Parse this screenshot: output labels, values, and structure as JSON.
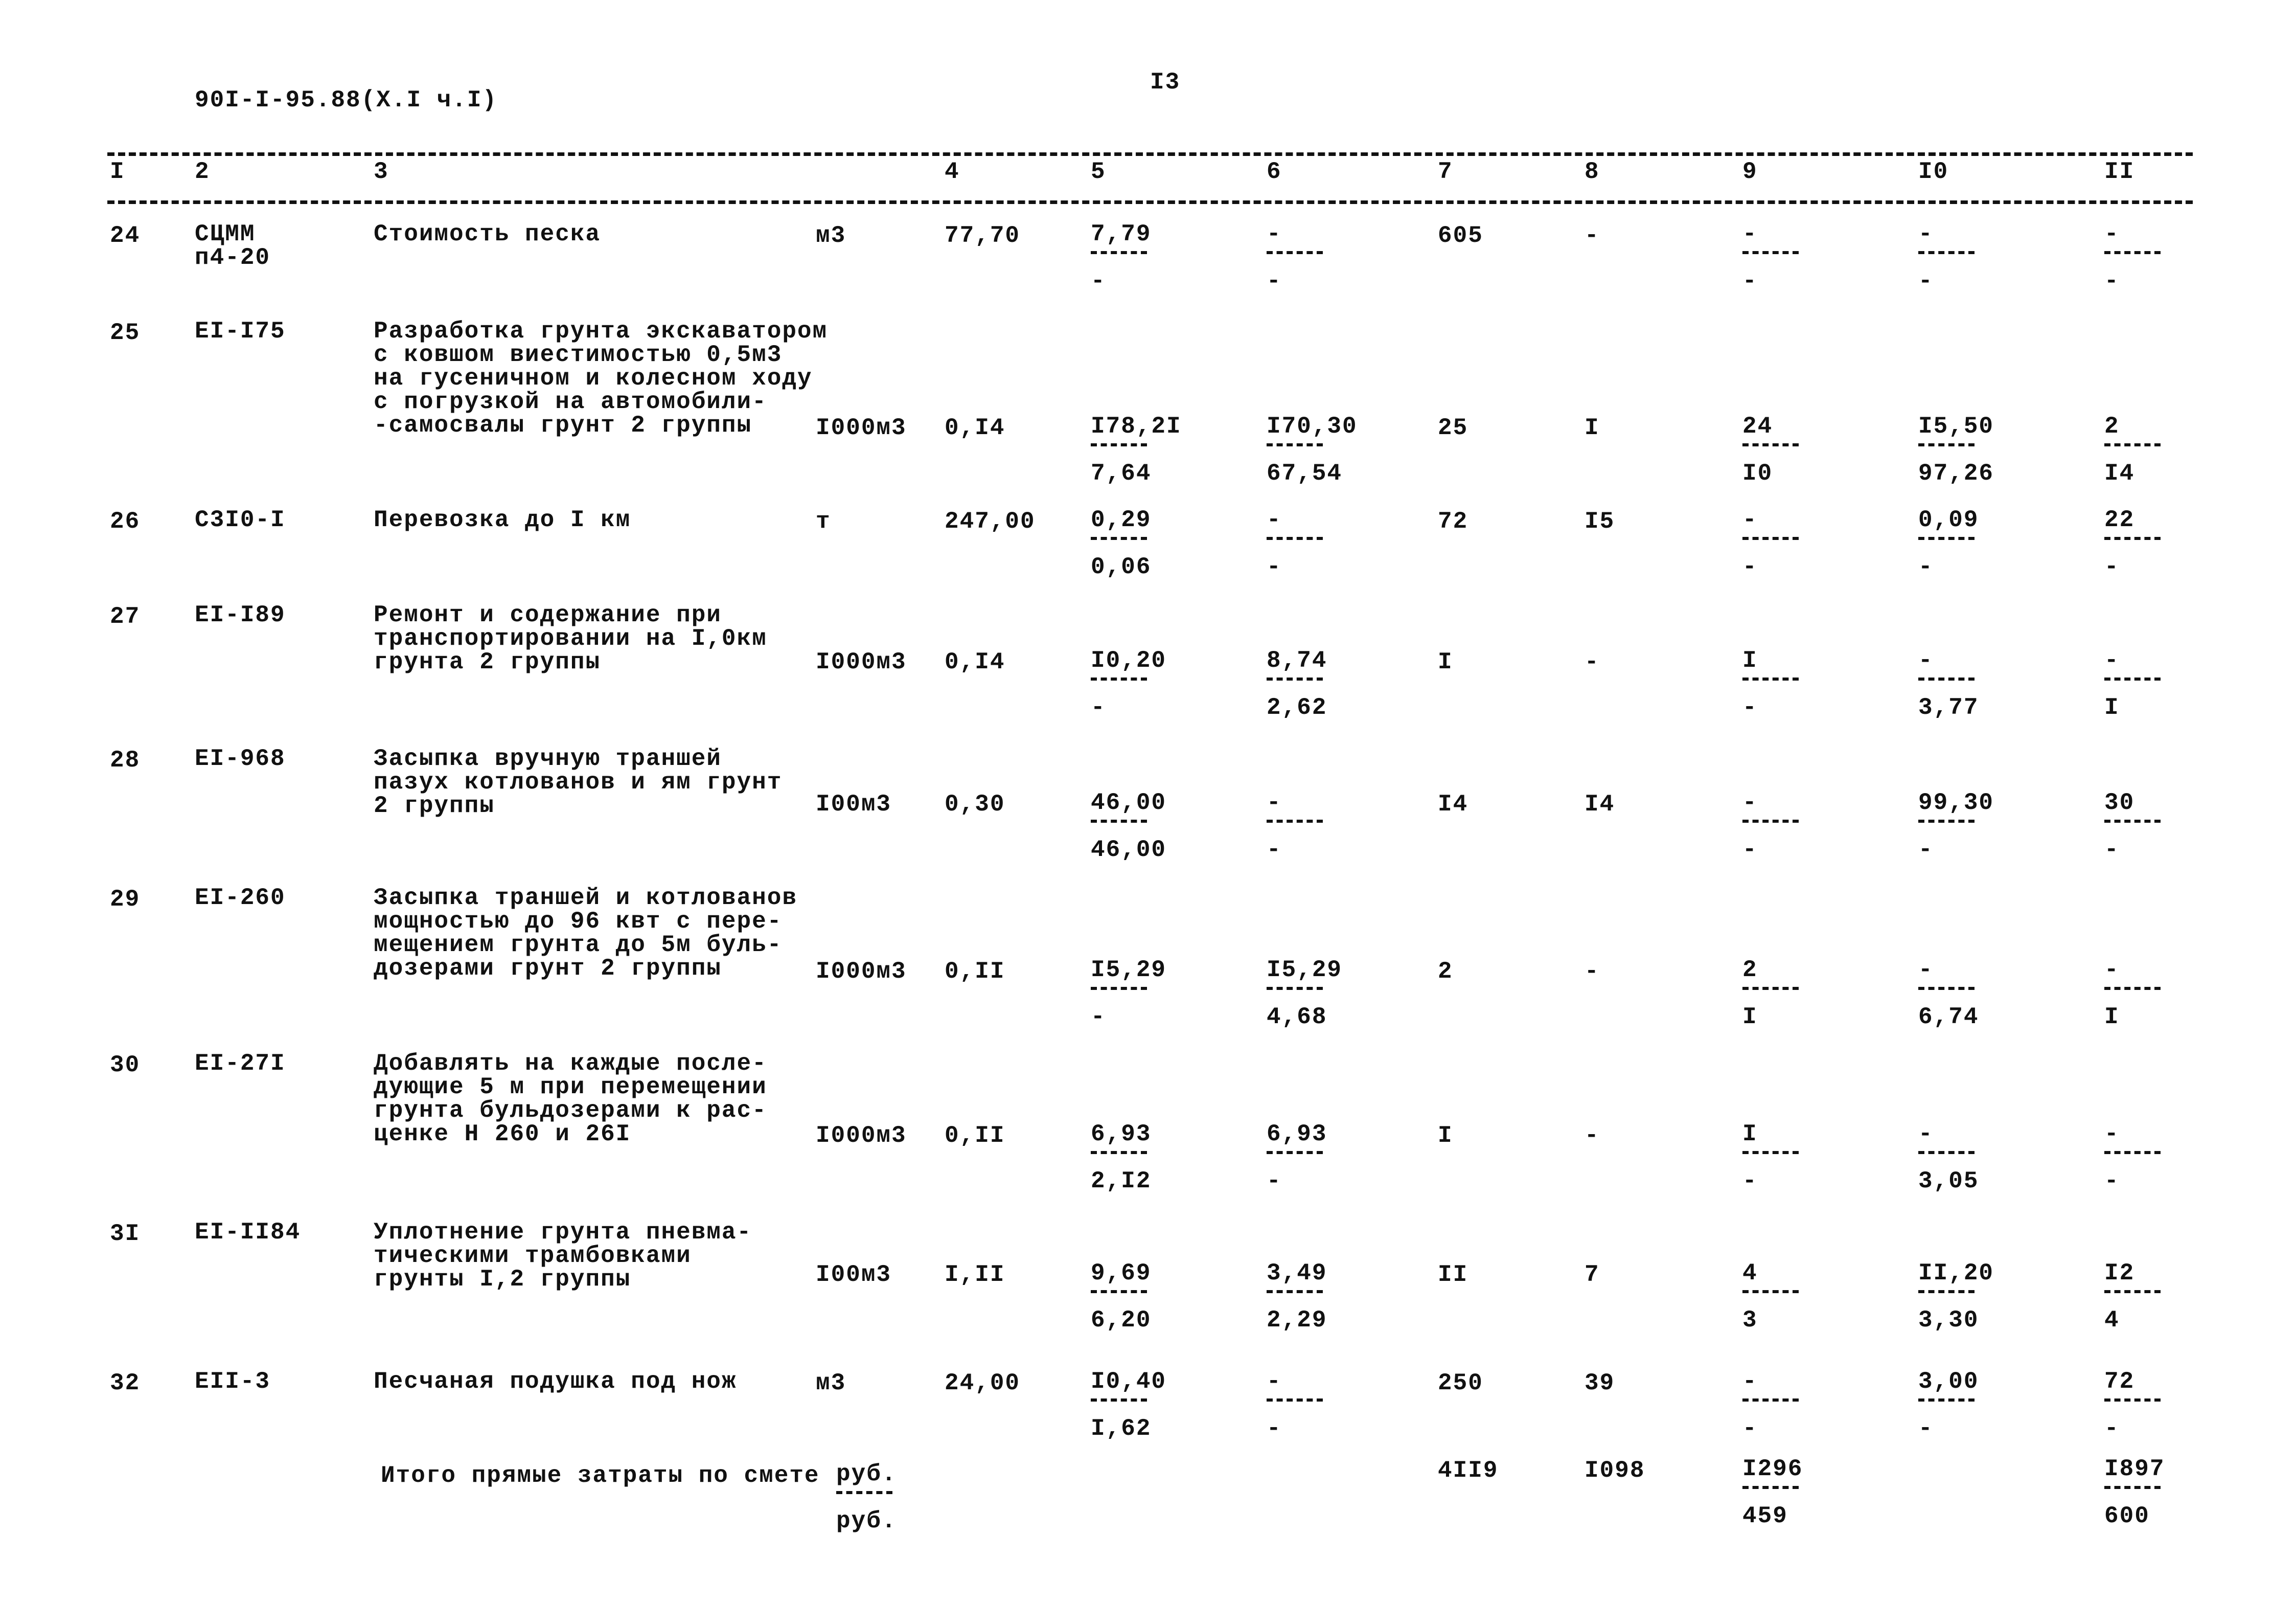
{
  "header": {
    "doc_code": "90I-I-95.88(X.I ч.I)",
    "page_number": "I3"
  },
  "columns": [
    "I",
    "2",
    "3",
    "4",
    "5",
    "6",
    "7",
    "8",
    "9",
    "I0",
    "II"
  ],
  "rows": [
    {
      "n": "24",
      "code": "СЦММ\nп4-20",
      "desc": "Стоимость песка",
      "unit": "м3",
      "qty": "77,70",
      "c5": [
        "7,79",
        "-"
      ],
      "c6": [
        "-",
        "-"
      ],
      "c7": "605",
      "c8": "-",
      "c9": [
        "-",
        "-"
      ],
      "c10": [
        "-",
        "-"
      ],
      "c11": [
        "-",
        "-"
      ]
    },
    {
      "n": "25",
      "code": "EI-I75",
      "desc": "Разработка грунта экскаватором\nс ковшом виестимостью 0,5м3\nна гусеничном и колесном ходу\nс погрузкой на автомобили-\n-самосвалы грунт 2 группы",
      "unit": "I000м3",
      "qty": "0,I4",
      "c5": [
        "I78,2I",
        "7,64"
      ],
      "c6": [
        "I70,30",
        "67,54"
      ],
      "c7": "25",
      "c8": "I",
      "c9": [
        "24",
        "I0"
      ],
      "c10": [
        "I5,50",
        "97,26"
      ],
      "c11": [
        "2",
        "I4"
      ]
    },
    {
      "n": "26",
      "code": "С3I0-I",
      "desc": "Перевозка до I км",
      "unit": "т",
      "qty": "247,00",
      "c5": [
        "0,29",
        "0,06"
      ],
      "c6": [
        "-",
        "-"
      ],
      "c7": "72",
      "c8": "I5",
      "c9": [
        "-",
        "-"
      ],
      "c10": [
        "0,09",
        "-"
      ],
      "c11": [
        "22",
        "-"
      ]
    },
    {
      "n": "27",
      "code": "EI-I89",
      "desc": "Ремонт и содержание при\nтранспортировании на I,0км\nгрунта 2 группы",
      "unit": "I000м3",
      "qty": "0,I4",
      "c5": [
        "I0,20",
        "-"
      ],
      "c6": [
        "8,74",
        "2,62"
      ],
      "c7": "I",
      "c8": "-",
      "c9": [
        "I",
        "-"
      ],
      "c10": [
        "-",
        "3,77"
      ],
      "c11": [
        "-",
        "I"
      ]
    },
    {
      "n": "28",
      "code": "EI-968",
      "desc": "Засыпка вручную траншей\nпазух котлованов и ям грунт\n2 группы",
      "unit": "I00м3",
      "qty": "0,30",
      "c5": [
        "46,00",
        "46,00"
      ],
      "c6": [
        "-",
        "-"
      ],
      "c7": "I4",
      "c8": "I4",
      "c9": [
        "-",
        "-"
      ],
      "c10": [
        "99,30",
        "-"
      ],
      "c11": [
        "30",
        "-"
      ]
    },
    {
      "n": "29",
      "code": "EI-260",
      "desc": "Засыпка траншей и котлованов\nмощностью до 96 квт с пере-\nмещением грунта до 5м буль-\nдозерами грунт 2 группы",
      "unit": "I000м3",
      "qty": "0,II",
      "c5": [
        "I5,29",
        "-"
      ],
      "c6": [
        "I5,29",
        "4,68"
      ],
      "c7": "2",
      "c8": "-",
      "c9": [
        "2",
        "I"
      ],
      "c10": [
        "-",
        "6,74"
      ],
      "c11": [
        "-",
        "I"
      ]
    },
    {
      "n": "30",
      "code": "EI-27I",
      "desc": "Добавлять на каждые после-\nдующие 5 м при перемещении\nгрунта бульдозерами к рас-\nценке Н 260 и 26I",
      "unit": "I000м3",
      "qty": "0,II",
      "c5": [
        "6,93",
        "2,I2"
      ],
      "c6": [
        "6,93",
        "-"
      ],
      "c7": "I",
      "c8": "-",
      "c9": [
        "I",
        "-"
      ],
      "c10": [
        "-",
        "3,05"
      ],
      "c11": [
        "-",
        "-"
      ]
    },
    {
      "n": "3I",
      "code": "EI-II84",
      "desc": "Уплотнение грунта пневма-\nтическими трамбовками\nгрунты I,2 группы",
      "unit": "I00м3",
      "qty": "I,II",
      "c5": [
        "9,69",
        "6,20"
      ],
      "c6": [
        "3,49",
        "2,29"
      ],
      "c7": "II",
      "c8": "7",
      "c9": [
        "4",
        "3"
      ],
      "c10": [
        "II,20",
        "3,30"
      ],
      "c11": [
        "I2",
        "4"
      ]
    },
    {
      "n": "32",
      "code": "EII-3",
      "desc": "Песчаная подушка под нож",
      "unit": "м3",
      "qty": "24,00",
      "c5": [
        "I0,40",
        "I,62"
      ],
      "c6": [
        "-",
        "-"
      ],
      "c7": "250",
      "c8": "39",
      "c9": [
        "-",
        "-"
      ],
      "c10": [
        "3,00",
        "-"
      ],
      "c11": [
        "72",
        "-"
      ]
    }
  ],
  "total": {
    "label": "Итого прямые затраты по смете",
    "unit": [
      "руб.",
      "руб."
    ],
    "c7": "4II9",
    "c8": "I098",
    "c9": [
      "I296",
      "459"
    ],
    "c11": [
      "I897",
      "600"
    ]
  }
}
